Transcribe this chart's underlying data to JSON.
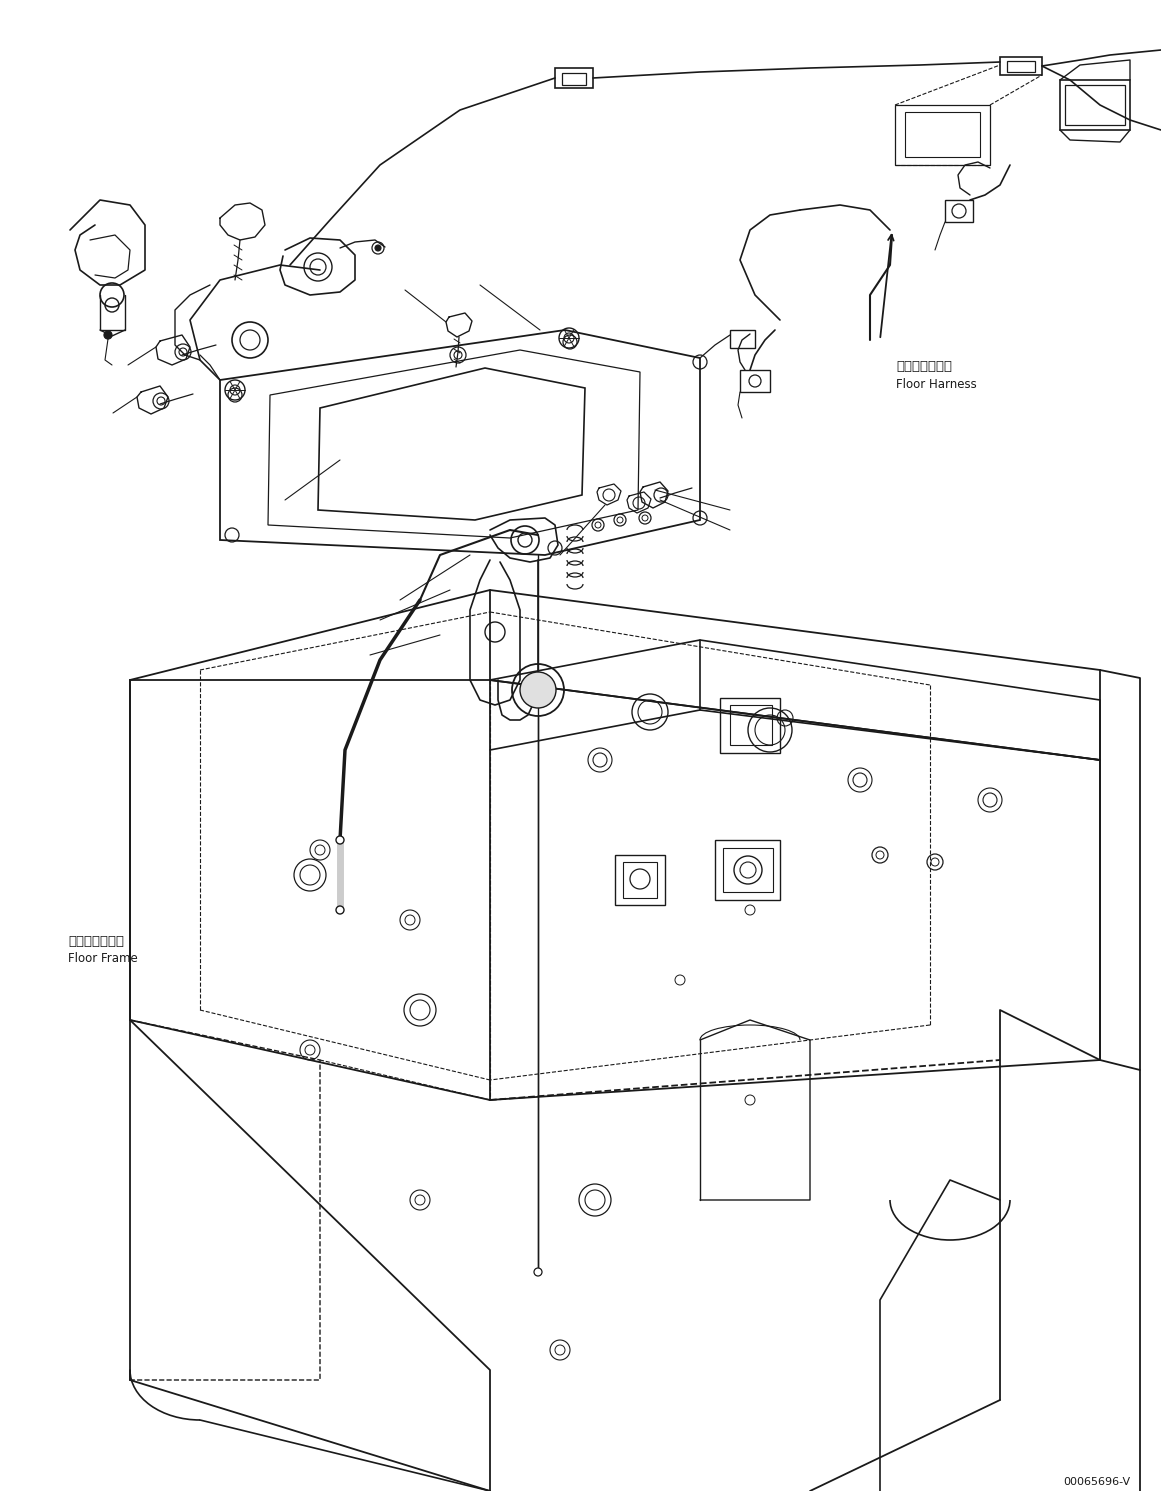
{
  "bg_color": "#ffffff",
  "line_color": "#1a1a1a",
  "part_number": "00065696-V",
  "label_floor_harness_jp": "フロアハーネス",
  "label_floor_harness_en": "Floor Harness",
  "label_floor_frame_jp": "フロアフレーム",
  "label_floor_frame_en": "Floor Frame",
  "figsize": [
    11.61,
    14.91
  ],
  "dpi": 100
}
